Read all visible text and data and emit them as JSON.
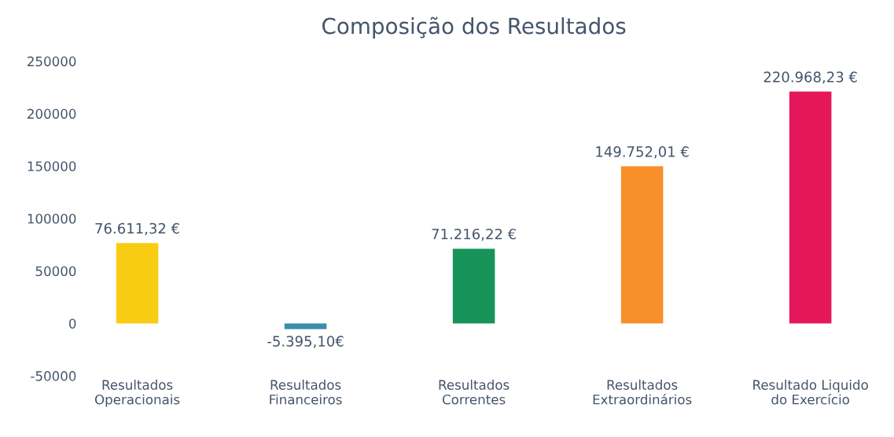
{
  "chart_data": {
    "type": "bar",
    "title": "Composição dos Resultados",
    "categories": [
      "Resultados\nOperacionais",
      "Resultados\nFinanceiros",
      "Resultados\nCorrentes",
      "Resultados\nExtraordinários",
      "Resultado Liquido\ndo Exercício"
    ],
    "values": [
      76611.32,
      -5395.1,
      71216.22,
      149752.01,
      220968.23
    ],
    "colors": [
      "#f9cc14",
      "#3a8fa8",
      "#17935a",
      "#f7902a",
      "#e5175a"
    ],
    "value_labels": [
      "76.611,32 €",
      "-5.395,10€",
      "71.216,22 €",
      "149.752,01 €",
      "220.968,23 €"
    ],
    "ylim": [
      -50000,
      250000
    ],
    "yticks": [
      -50000,
      0,
      50000,
      100000,
      150000,
      200000,
      250000
    ],
    "grid": false
  }
}
